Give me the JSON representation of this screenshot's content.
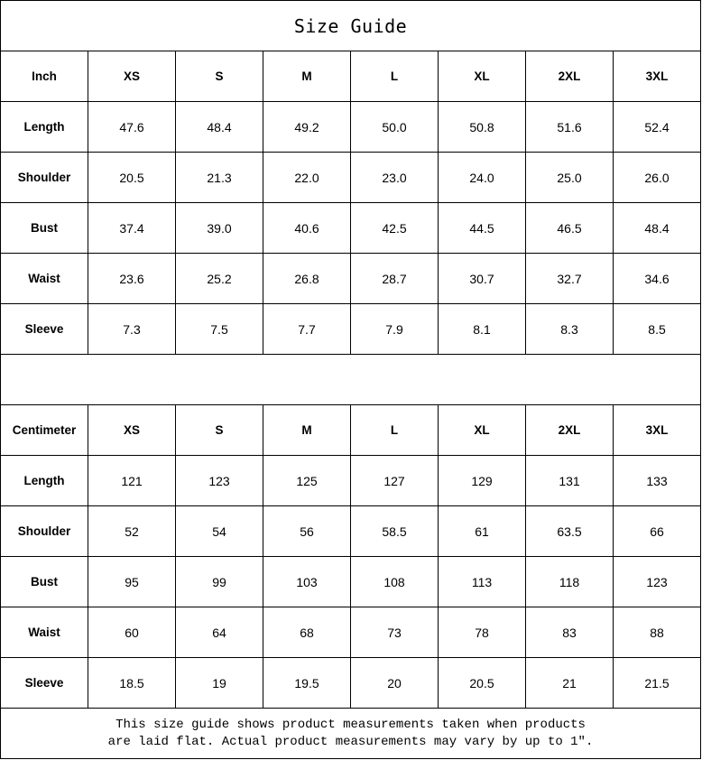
{
  "title": "Size Guide",
  "sizes": [
    "XS",
    "S",
    "M",
    "L",
    "XL",
    "2XL",
    "3XL"
  ],
  "inch": {
    "unit_label": "Inch",
    "rows": [
      {
        "label": "Length",
        "values": [
          "47.6",
          "48.4",
          "49.2",
          "50.0",
          "50.8",
          "51.6",
          "52.4"
        ]
      },
      {
        "label": "Shoulder",
        "values": [
          "20.5",
          "21.3",
          "22.0",
          "23.0",
          "24.0",
          "25.0",
          "26.0"
        ]
      },
      {
        "label": "Bust",
        "values": [
          "37.4",
          "39.0",
          "40.6",
          "42.5",
          "44.5",
          "46.5",
          "48.4"
        ]
      },
      {
        "label": "Waist",
        "values": [
          "23.6",
          "25.2",
          "26.8",
          "28.7",
          "30.7",
          "32.7",
          "34.6"
        ]
      },
      {
        "label": "Sleeve",
        "values": [
          "7.3",
          "7.5",
          "7.7",
          "7.9",
          "8.1",
          "8.3",
          "8.5"
        ]
      }
    ]
  },
  "centimeter": {
    "unit_label": "Centimeter",
    "rows": [
      {
        "label": "Length",
        "values": [
          "121",
          "123",
          "125",
          "127",
          "129",
          "131",
          "133"
        ]
      },
      {
        "label": "Shoulder",
        "values": [
          "52",
          "54",
          "56",
          "58.5",
          "61",
          "63.5",
          "66"
        ]
      },
      {
        "label": "Bust",
        "values": [
          "95",
          "99",
          "103",
          "108",
          "113",
          "118",
          "123"
        ]
      },
      {
        "label": "Waist",
        "values": [
          "60",
          "64",
          "68",
          "73",
          "78",
          "83",
          "88"
        ]
      },
      {
        "label": "Sleeve",
        "values": [
          "18.5",
          "19",
          "19.5",
          "20",
          "20.5",
          "21",
          "21.5"
        ]
      }
    ]
  },
  "note_line1": "This size guide shows product measurements taken when products",
  "note_line2": "are laid flat. Actual product measurements may vary by up to 1″."
}
